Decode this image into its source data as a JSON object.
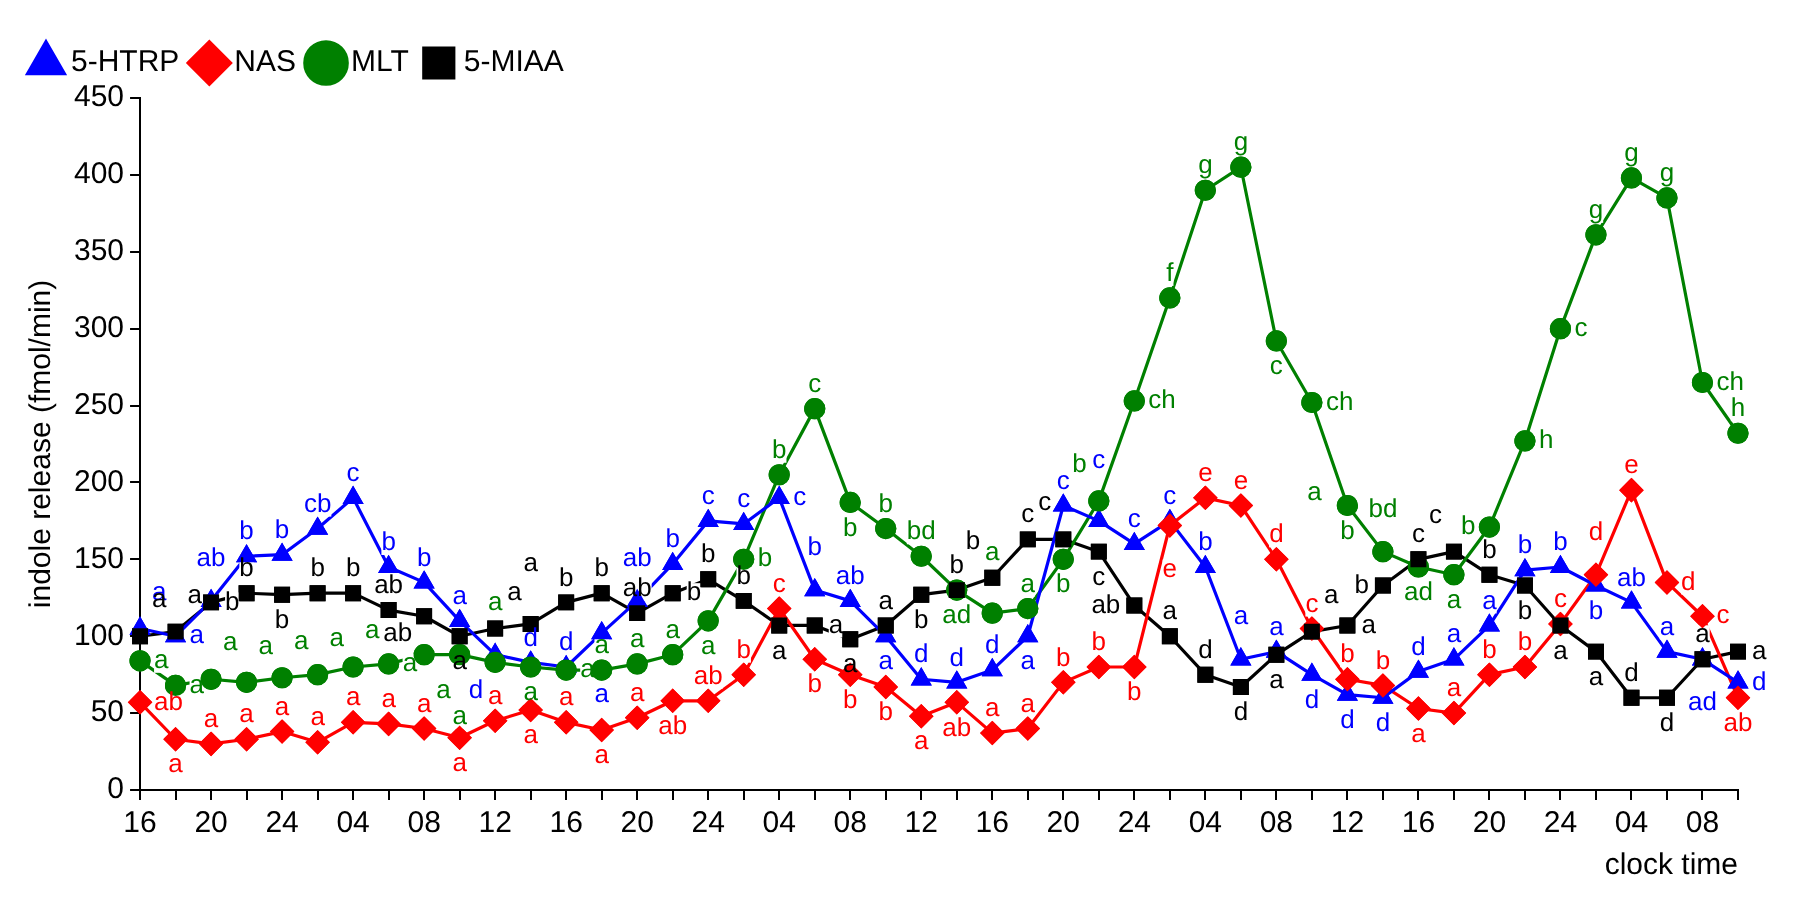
{
  "chart_data": {
    "type": "line",
    "xlabel": "clock time",
    "ylabel": "indole release (fmol/min)",
    "categories": [
      "16",
      null,
      "20",
      null,
      "24",
      null,
      "04",
      null,
      "08",
      null,
      "12",
      null,
      "16",
      null,
      "20",
      null,
      "24",
      null,
      "04",
      null,
      "08",
      null,
      "12",
      null,
      "16",
      null,
      "20",
      null,
      "24",
      null,
      "04",
      null,
      "08",
      null,
      "12",
      null,
      "16",
      null,
      "20",
      null,
      "24",
      null,
      "04",
      null,
      "08",
      null
    ],
    "ylim": [
      0,
      450
    ],
    "yticks": [
      0,
      50,
      100,
      150,
      200,
      250,
      300,
      350,
      400,
      450
    ],
    "legend": "top left",
    "line_style": "solid",
    "series": [
      {
        "name": "5-HTRP",
        "color": "#0000ff",
        "marker": "triangle",
        "values": [
          105,
          100,
          123,
          152,
          153,
          170,
          190,
          145,
          135,
          110,
          88,
          83,
          80,
          102,
          123,
          147,
          175,
          173,
          190,
          130,
          123,
          100,
          72,
          70,
          78,
          100,
          185,
          175,
          160,
          175,
          145,
          85,
          90,
          75,
          62,
          60,
          77,
          85,
          107,
          143,
          145,
          133,
          122,
          90,
          85,
          70
        ],
        "value_labels": [
          "a",
          "a",
          "ab",
          "b",
          "b",
          "cb",
          "c",
          "b",
          "b",
          "a",
          "d",
          "d",
          "d",
          "a",
          "ab",
          "b",
          "c",
          "c",
          "c",
          "b",
          "ab",
          "a",
          "d",
          "d",
          "d",
          "a",
          "c",
          "c",
          "c",
          "c",
          "b",
          "a",
          "a",
          "d",
          "d",
          "d",
          "d",
          "a",
          "a",
          "b",
          "b",
          "b",
          "ab",
          "a",
          "ad",
          "d"
        ]
      },
      {
        "name": "NAS",
        "color": "#ff0000",
        "marker": "diamond",
        "values": [
          57,
          33,
          30,
          33,
          38,
          31,
          44,
          43,
          40,
          34,
          45,
          52,
          44,
          39,
          47,
          58,
          58,
          75,
          118,
          85,
          75,
          67,
          48,
          57,
          37,
          40,
          70,
          80,
          80,
          172,
          190,
          185,
          150,
          105,
          72,
          68,
          53,
          50,
          75,
          80,
          108,
          140,
          195,
          135,
          113,
          60
        ],
        "value_labels": [
          "ab",
          "a",
          "a",
          "a",
          "a",
          "a",
          "a",
          "a",
          "a",
          "a",
          "a",
          "a",
          "a",
          "a",
          "a",
          "ab",
          "ab",
          "b",
          "c",
          "b",
          "b",
          "b",
          "a",
          "ab",
          "a",
          "a",
          "b",
          "b",
          "b",
          "e",
          "e",
          "e",
          "d",
          "c",
          "b",
          "b",
          "a",
          "a",
          "b",
          "b",
          "c",
          "d",
          "e",
          "d",
          "c",
          "ab"
        ]
      },
      {
        "name": "MLT",
        "color": "#008000",
        "marker": "circle",
        "values": [
          84,
          68,
          72,
          70,
          73,
          75,
          80,
          82,
          88,
          88,
          83,
          80,
          78,
          78,
          82,
          88,
          110,
          150,
          205,
          248,
          187,
          170,
          152,
          130,
          115,
          118,
          150,
          188,
          253,
          320,
          390,
          405,
          292,
          252,
          185,
          155,
          145,
          140,
          171,
          227,
          300,
          361,
          398,
          385,
          265,
          232
        ],
        "value_labels": [
          "a",
          "a",
          "a",
          "a",
          "a",
          "a",
          "a",
          "a",
          "a",
          "a",
          "a",
          "a",
          "a",
          "a",
          "a",
          "a",
          "a",
          "b",
          "b",
          "c",
          "b",
          "b",
          "bd",
          "ad",
          "a",
          "a",
          "b",
          "b",
          "ch",
          "f",
          "g",
          "g",
          "c",
          "ch",
          "b",
          "bd",
          "ad",
          "a",
          "b",
          "h",
          "c",
          "g",
          "g",
          "g",
          "ch",
          "h"
        ]
      },
      {
        "name": "5-MIAA",
        "color": "#000000",
        "marker": "square",
        "values": [
          100,
          103,
          122,
          128,
          127,
          128,
          128,
          117,
          113,
          100,
          105,
          108,
          122,
          128,
          115,
          128,
          137,
          123,
          107,
          107,
          98,
          107,
          127,
          130,
          138,
          163,
          163,
          155,
          120,
          100,
          75,
          67,
          88,
          103,
          107,
          133,
          150,
          155,
          140,
          133,
          107,
          90,
          60,
          60,
          85,
          90
        ],
        "value_labels": [
          "a",
          "a",
          "b",
          "b",
          "b",
          "b",
          "b",
          "ab",
          "ab",
          "a",
          "a",
          "a",
          "b",
          "b",
          "ab",
          "b",
          "b",
          "b",
          "a",
          "a",
          "a",
          "a",
          "b",
          "b",
          "b",
          "c",
          "c",
          "c",
          "ab",
          "a",
          "d",
          "d",
          "a",
          "a",
          "a",
          "b",
          "c",
          "c",
          "b",
          "b",
          "a",
          "a",
          "d",
          "d",
          "a",
          "a"
        ]
      }
    ],
    "annotations": [
      "a"
    ]
  }
}
